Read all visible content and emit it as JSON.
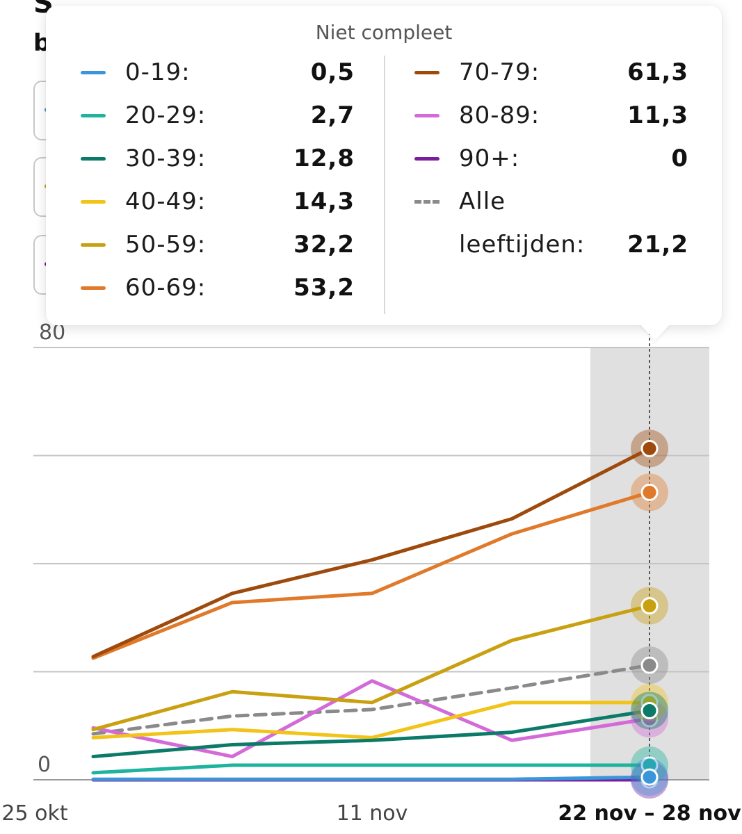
{
  "chart_data": {
    "type": "line",
    "title": "",
    "xlabel": "",
    "ylabel": "",
    "ylim": [
      0,
      80
    ],
    "y_ticks": [
      0,
      80
    ],
    "x_tick_labels": [
      "25 okt",
      "11 nov",
      "22 nov – 28 nov"
    ],
    "highlight_label": "22 nov – 28 nov",
    "periods": [
      "p1",
      "p2",
      "p3",
      "p4",
      "p5"
    ],
    "series": [
      {
        "name": "0-19",
        "color": "#3a96d8",
        "values": [
          0.1,
          0.1,
          0.1,
          0.1,
          0.5
        ]
      },
      {
        "name": "20-29",
        "color": "#1db39c",
        "values": [
          1.3,
          2.7,
          2.7,
          2.7,
          2.7
        ]
      },
      {
        "name": "30-39",
        "color": "#0b7a68",
        "values": [
          4.3,
          6.5,
          7.3,
          8.8,
          12.8
        ]
      },
      {
        "name": "40-49",
        "color": "#f2c318",
        "values": [
          7.8,
          9.3,
          7.8,
          14.3,
          14.3
        ]
      },
      {
        "name": "50-59",
        "color": "#c9a010",
        "values": [
          9.3,
          16.3,
          14.3,
          25.8,
          32.2
        ]
      },
      {
        "name": "60-69",
        "color": "#e07a2a",
        "values": [
          22.5,
          32.8,
          34.5,
          45.5,
          53.2
        ]
      },
      {
        "name": "70-79",
        "color": "#9e4a0c",
        "values": [
          22.8,
          34.5,
          40.7,
          48.3,
          61.3
        ]
      },
      {
        "name": "80-89",
        "color": "#d36ad8",
        "values": [
          9.6,
          4.3,
          18.3,
          7.3,
          11.3
        ]
      },
      {
        "name": "90+",
        "color": "#7a1ea0",
        "values": [
          0,
          0,
          0,
          0,
          0
        ]
      },
      {
        "name": "Alle leeftijden",
        "color": "#8a8a8a",
        "dashed": true,
        "values": [
          8.5,
          11.8,
          13.0,
          17.0,
          21.2
        ]
      }
    ]
  },
  "background": {
    "title_fragment": "S",
    "subtitle_fragment": "b",
    "filter_dot_colors": [
      "#3a96d8",
      "#c9a010",
      "#7a1ea0"
    ]
  },
  "tooltip": {
    "header": "Niet compleet",
    "left_items": [
      {
        "label": "0-19:",
        "value": "0,5",
        "color": "#3a96d8"
      },
      {
        "label": "20-29:",
        "value": "2,7",
        "color": "#1db39c"
      },
      {
        "label": "30-39:",
        "value": "12,8",
        "color": "#0b7a68"
      },
      {
        "label": "40-49:",
        "value": "14,3",
        "color": "#f2c318"
      },
      {
        "label": "50-59:",
        "value": "32,2",
        "color": "#c9a010"
      },
      {
        "label": "60-69:",
        "value": "53,2",
        "color": "#e07a2a"
      }
    ],
    "right_items": [
      {
        "label": "70-79:",
        "value": "61,3",
        "color": "#9e4a0c"
      },
      {
        "label": "80-89:",
        "value": "11,3",
        "color": "#d36ad8"
      },
      {
        "label": "90+:",
        "value": "0",
        "color": "#7a1ea0"
      }
    ],
    "all_ages": {
      "label_line1": "Alle",
      "label_line2": "leeftijden:",
      "value": "21,2",
      "color": "#8a8a8a"
    }
  }
}
